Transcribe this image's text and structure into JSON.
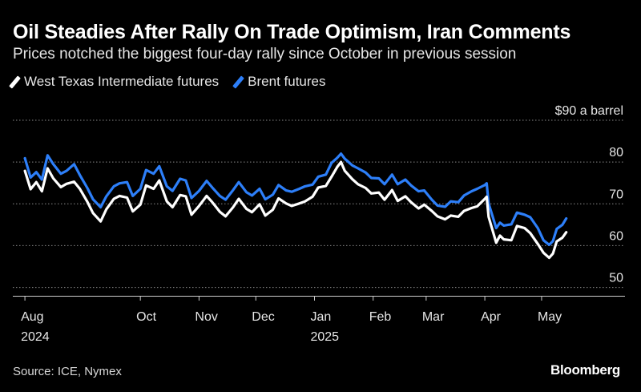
{
  "header": {
    "title": "Oil Steadies After Rally On Trade Optimism, Iran Comments",
    "subtitle": "Prices notched the biggest four-day rally since October in previous session"
  },
  "footer": {
    "source": "Source: ICE, Nymex",
    "brand": "Bloomberg"
  },
  "chart_data": {
    "type": "line",
    "title": "Oil Steadies After Rally On Trade Optimism, Iran Comments",
    "subtitle": "Prices notched the biggest four-day rally since October in previous session",
    "unit_label": "$90 a barrel",
    "ylim": [
      48,
      90
    ],
    "y_ticks": [
      50,
      60,
      70,
      80,
      90
    ],
    "y_tick_labels": [
      "50",
      "60",
      "70",
      "80",
      "$90 a barrel"
    ],
    "xlim": [
      "2024-07-29",
      "2025-05-26"
    ],
    "x_ticks": [
      {
        "date": "2024-08-01",
        "label": "Aug",
        "year": "2024"
      },
      {
        "date": "2024-10-01",
        "label": "Oct",
        "year": ""
      },
      {
        "date": "2024-11-01",
        "label": "Nov",
        "year": ""
      },
      {
        "date": "2024-12-01",
        "label": "Dec",
        "year": ""
      },
      {
        "date": "2025-01-01",
        "label": "Jan",
        "year": "2025"
      },
      {
        "date": "2025-02-01",
        "label": "Feb",
        "year": ""
      },
      {
        "date": "2025-03-01",
        "label": "Mar",
        "year": ""
      },
      {
        "date": "2025-04-01",
        "label": "Apr",
        "year": ""
      },
      {
        "date": "2025-05-01",
        "label": "May",
        "year": ""
      }
    ],
    "grid": "horizontal-dotted",
    "legend_position": "top-left",
    "colors": {
      "wti": "#ffffff",
      "brent": "#2d7ff9",
      "grid": "#8a8a8a",
      "axis": "#cccccc"
    },
    "series": [
      {
        "name": "West Texas Intermediate futures",
        "color": "#ffffff",
        "points": [
          [
            "2024-08-01",
            77.9
          ],
          [
            "2024-08-04",
            73.5
          ],
          [
            "2024-08-07",
            75.2
          ],
          [
            "2024-08-10",
            73.0
          ],
          [
            "2024-08-13",
            78.5
          ],
          [
            "2024-08-16",
            76.1
          ],
          [
            "2024-08-20",
            74.0
          ],
          [
            "2024-08-23",
            74.8
          ],
          [
            "2024-08-27",
            75.3
          ],
          [
            "2024-08-30",
            73.6
          ],
          [
            "2024-09-03",
            70.5
          ],
          [
            "2024-09-06",
            67.8
          ],
          [
            "2024-09-10",
            65.8
          ],
          [
            "2024-09-13",
            68.7
          ],
          [
            "2024-09-17",
            71.2
          ],
          [
            "2024-09-20",
            71.9
          ],
          [
            "2024-09-24",
            71.5
          ],
          [
            "2024-09-27",
            68.2
          ],
          [
            "2024-10-01",
            69.8
          ],
          [
            "2024-10-04",
            74.4
          ],
          [
            "2024-10-08",
            73.6
          ],
          [
            "2024-10-11",
            75.6
          ],
          [
            "2024-10-15",
            70.6
          ],
          [
            "2024-10-18",
            69.2
          ],
          [
            "2024-10-22",
            72.1
          ],
          [
            "2024-10-25",
            71.8
          ],
          [
            "2024-10-28",
            67.4
          ],
          [
            "2024-11-01",
            69.5
          ],
          [
            "2024-11-05",
            71.9
          ],
          [
            "2024-11-08",
            70.4
          ],
          [
            "2024-11-12",
            68.1
          ],
          [
            "2024-11-15",
            67.0
          ],
          [
            "2024-11-19",
            69.2
          ],
          [
            "2024-11-22",
            71.2
          ],
          [
            "2024-11-26",
            68.8
          ],
          [
            "2024-11-29",
            68.0
          ],
          [
            "2024-12-03",
            69.9
          ],
          [
            "2024-12-06",
            67.2
          ],
          [
            "2024-12-10",
            68.6
          ],
          [
            "2024-12-13",
            71.3
          ],
          [
            "2024-12-17",
            70.1
          ],
          [
            "2024-12-20",
            69.5
          ],
          [
            "2024-12-24",
            70.1
          ],
          [
            "2024-12-27",
            70.6
          ],
          [
            "2024-12-31",
            71.7
          ],
          [
            "2025-01-03",
            73.9
          ],
          [
            "2025-01-07",
            74.3
          ],
          [
            "2025-01-10",
            76.5
          ],
          [
            "2025-01-13",
            78.8
          ],
          [
            "2025-01-15",
            80.0
          ],
          [
            "2025-01-17",
            77.9
          ],
          [
            "2025-01-21",
            75.9
          ],
          [
            "2025-01-24",
            74.7
          ],
          [
            "2025-01-28",
            73.8
          ],
          [
            "2025-01-31",
            72.5
          ],
          [
            "2025-02-04",
            72.7
          ],
          [
            "2025-02-07",
            71.0
          ],
          [
            "2025-02-11",
            73.3
          ],
          [
            "2025-02-14",
            70.7
          ],
          [
            "2025-02-18",
            71.8
          ],
          [
            "2025-02-21",
            70.4
          ],
          [
            "2025-02-25",
            68.9
          ],
          [
            "2025-02-28",
            69.8
          ],
          [
            "2025-03-04",
            68.3
          ],
          [
            "2025-03-07",
            67.0
          ],
          [
            "2025-03-11",
            66.3
          ],
          [
            "2025-03-14",
            67.2
          ],
          [
            "2025-03-18",
            66.9
          ],
          [
            "2025-03-21",
            68.3
          ],
          [
            "2025-03-25",
            69.0
          ],
          [
            "2025-03-28",
            69.4
          ],
          [
            "2025-04-01",
            71.2
          ],
          [
            "2025-04-02",
            71.7
          ],
          [
            "2025-04-03",
            66.9
          ],
          [
            "2025-04-07",
            60.7
          ],
          [
            "2025-04-09",
            62.4
          ],
          [
            "2025-04-11",
            61.5
          ],
          [
            "2025-04-15",
            61.3
          ],
          [
            "2025-04-18",
            64.7
          ],
          [
            "2025-04-22",
            64.2
          ],
          [
            "2025-04-25",
            63.0
          ],
          [
            "2025-04-29",
            60.4
          ],
          [
            "2025-05-02",
            58.3
          ],
          [
            "2025-05-05",
            57.1
          ],
          [
            "2025-05-07",
            58.1
          ],
          [
            "2025-05-09",
            61.0
          ],
          [
            "2025-05-12",
            61.9
          ],
          [
            "2025-05-14",
            63.2
          ]
        ]
      },
      {
        "name": "Brent futures",
        "color": "#2d7ff9",
        "points": [
          [
            "2024-08-01",
            80.9
          ],
          [
            "2024-08-04",
            76.3
          ],
          [
            "2024-08-07",
            77.6
          ],
          [
            "2024-08-10",
            75.8
          ],
          [
            "2024-08-13",
            81.6
          ],
          [
            "2024-08-16",
            79.5
          ],
          [
            "2024-08-20",
            77.2
          ],
          [
            "2024-08-23",
            77.9
          ],
          [
            "2024-08-27",
            79.5
          ],
          [
            "2024-08-30",
            76.9
          ],
          [
            "2024-09-03",
            73.8
          ],
          [
            "2024-09-06",
            71.1
          ],
          [
            "2024-09-10",
            69.2
          ],
          [
            "2024-09-13",
            71.8
          ],
          [
            "2024-09-17",
            74.2
          ],
          [
            "2024-09-20",
            74.9
          ],
          [
            "2024-09-24",
            75.2
          ],
          [
            "2024-09-27",
            71.9
          ],
          [
            "2024-10-01",
            73.6
          ],
          [
            "2024-10-04",
            78.1
          ],
          [
            "2024-10-08",
            77.2
          ],
          [
            "2024-10-11",
            79.0
          ],
          [
            "2024-10-15",
            74.2
          ],
          [
            "2024-10-18",
            73.1
          ],
          [
            "2024-10-22",
            76.0
          ],
          [
            "2024-10-25",
            75.6
          ],
          [
            "2024-10-28",
            71.4
          ],
          [
            "2024-11-01",
            73.1
          ],
          [
            "2024-11-05",
            75.5
          ],
          [
            "2024-11-08",
            73.9
          ],
          [
            "2024-11-12",
            71.9
          ],
          [
            "2024-11-15",
            71.0
          ],
          [
            "2024-11-19",
            73.3
          ],
          [
            "2024-11-22",
            75.2
          ],
          [
            "2024-11-26",
            72.8
          ],
          [
            "2024-11-29",
            72.0
          ],
          [
            "2024-12-03",
            73.6
          ],
          [
            "2024-12-06",
            71.1
          ],
          [
            "2024-12-10",
            72.2
          ],
          [
            "2024-12-13",
            74.5
          ],
          [
            "2024-12-17",
            73.2
          ],
          [
            "2024-12-20",
            72.9
          ],
          [
            "2024-12-24",
            73.6
          ],
          [
            "2024-12-27",
            74.2
          ],
          [
            "2024-12-31",
            74.6
          ],
          [
            "2025-01-03",
            76.5
          ],
          [
            "2025-01-07",
            77.0
          ],
          [
            "2025-01-10",
            79.8
          ],
          [
            "2025-01-13",
            81.0
          ],
          [
            "2025-01-15",
            82.0
          ],
          [
            "2025-01-17",
            80.8
          ],
          [
            "2025-01-21",
            79.2
          ],
          [
            "2025-01-24",
            78.5
          ],
          [
            "2025-01-28",
            77.5
          ],
          [
            "2025-01-31",
            76.2
          ],
          [
            "2025-02-04",
            76.1
          ],
          [
            "2025-02-07",
            74.7
          ],
          [
            "2025-02-11",
            77.0
          ],
          [
            "2025-02-14",
            74.7
          ],
          [
            "2025-02-18",
            75.8
          ],
          [
            "2025-02-21",
            74.4
          ],
          [
            "2025-02-25",
            73.0
          ],
          [
            "2025-02-28",
            73.2
          ],
          [
            "2025-03-04",
            71.0
          ],
          [
            "2025-03-07",
            69.6
          ],
          [
            "2025-03-11",
            69.3
          ],
          [
            "2025-03-14",
            70.6
          ],
          [
            "2025-03-18",
            70.4
          ],
          [
            "2025-03-21",
            72.0
          ],
          [
            "2025-03-25",
            73.0
          ],
          [
            "2025-03-28",
            73.6
          ],
          [
            "2025-04-01",
            74.5
          ],
          [
            "2025-04-02",
            74.9
          ],
          [
            "2025-04-03",
            70.1
          ],
          [
            "2025-04-07",
            64.2
          ],
          [
            "2025-04-09",
            65.5
          ],
          [
            "2025-04-11",
            64.8
          ],
          [
            "2025-04-15",
            65.1
          ],
          [
            "2025-04-18",
            67.9
          ],
          [
            "2025-04-22",
            67.4
          ],
          [
            "2025-04-25",
            66.8
          ],
          [
            "2025-04-29",
            64.2
          ],
          [
            "2025-05-02",
            61.3
          ],
          [
            "2025-05-05",
            60.2
          ],
          [
            "2025-05-07",
            61.1
          ],
          [
            "2025-05-09",
            64.0
          ],
          [
            "2025-05-12",
            65.0
          ],
          [
            "2025-05-14",
            66.5
          ]
        ]
      }
    ],
    "source": "Source: ICE, Nymex"
  }
}
